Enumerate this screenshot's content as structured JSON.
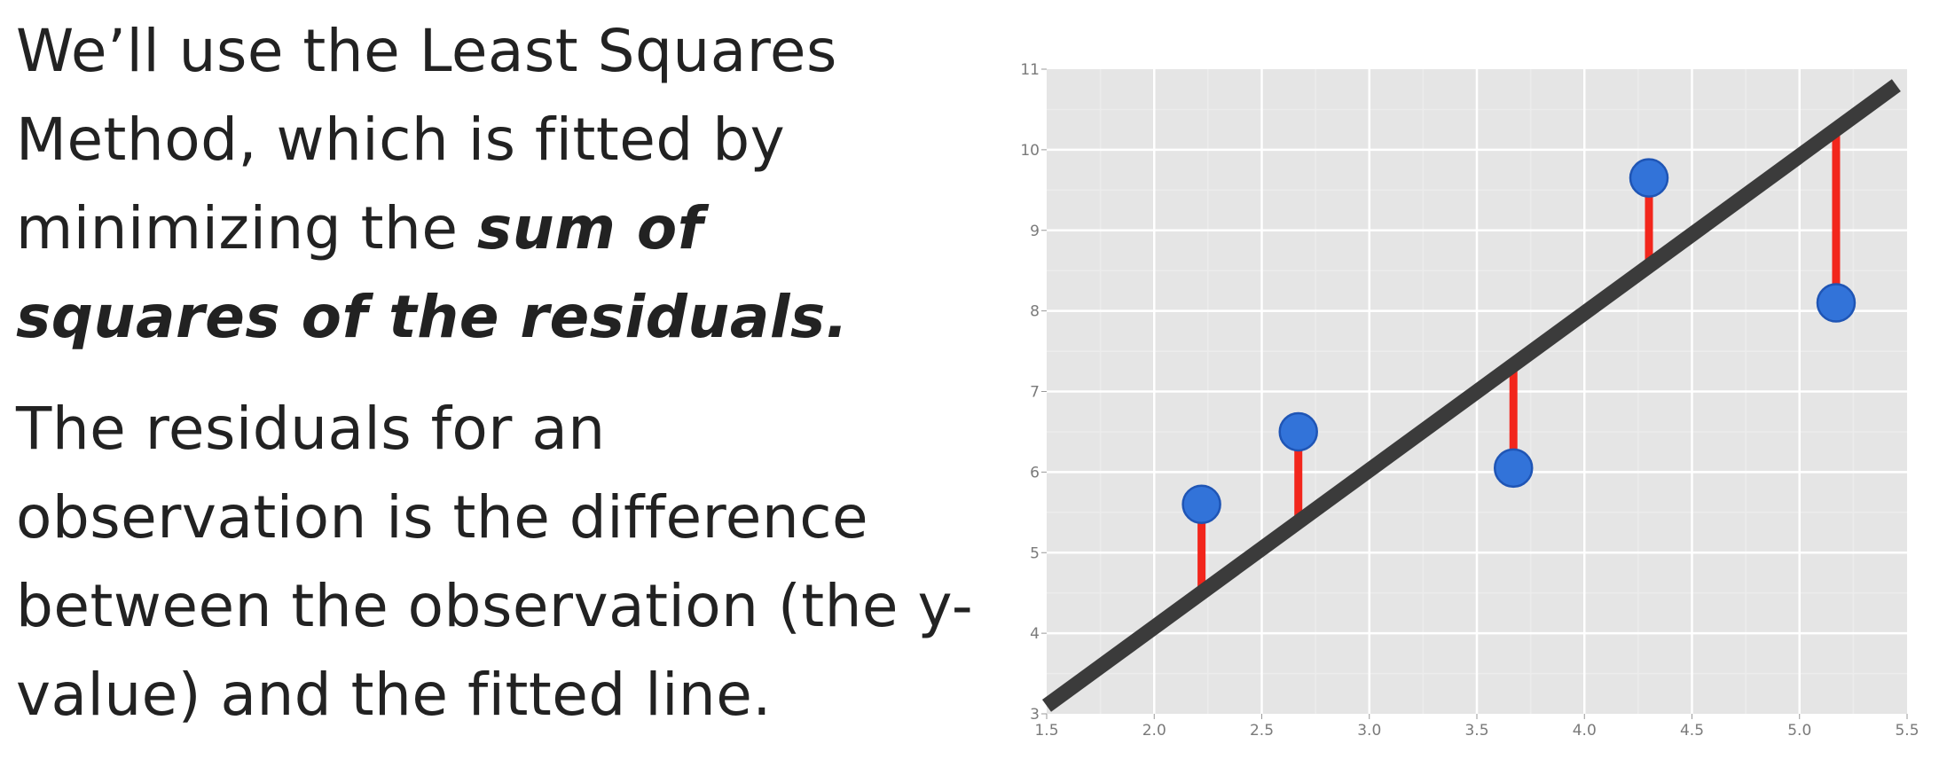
{
  "text": {
    "para1_plain": "We’ll use the Least Squares Method, which is fitted by minimizing the ",
    "para1_emph": "sum of squares of the residuals.",
    "para2": "The residuals for an observation is the difference between the observation (the y-value) and the fitted line."
  },
  "chart_data": {
    "type": "scatter",
    "title": "",
    "xlabel": "",
    "ylabel": "",
    "xlim": [
      1.5,
      5.5
    ],
    "ylim": [
      3,
      11
    ],
    "grid": true,
    "x_ticks": [
      "1.5",
      "2.0",
      "2.5",
      "3.0",
      "3.5",
      "4.0",
      "4.5",
      "5.0",
      "5.5"
    ],
    "y_ticks": [
      "3",
      "4",
      "5",
      "6",
      "7",
      "8",
      "9",
      "10",
      "11"
    ],
    "points": [
      {
        "x": 2.22,
        "y": 5.6
      },
      {
        "x": 2.67,
        "y": 6.5
      },
      {
        "x": 3.67,
        "y": 6.05
      },
      {
        "x": 4.3,
        "y": 9.65
      },
      {
        "x": 5.17,
        "y": 8.1
      }
    ],
    "fitted_line": {
      "x1": 1.5,
      "y1": 3.1,
      "x2": 5.45,
      "y2": 10.8
    },
    "colors": {
      "panel": "#e5e5e5",
      "grid": "#ffffff",
      "point": "#3273d9",
      "point_edge": "#1f55b5",
      "residual": "#f2261c",
      "fit_line": "#3b3b3b"
    }
  }
}
